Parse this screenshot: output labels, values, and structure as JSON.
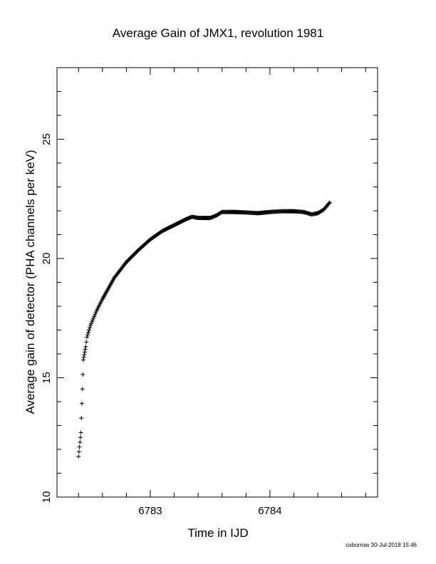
{
  "chart_data": {
    "type": "scatter",
    "title": "Average Gain of JMX1, revolution 1981",
    "xlabel": "Time in IJD",
    "ylabel": "Average gain of detector (PHA channels per keV)",
    "xlim": [
      6782.22,
      6784.9
    ],
    "ylim": [
      10,
      28
    ],
    "x_ticks": [
      6783,
      6784
    ],
    "y_ticks": [
      15,
      20,
      25
    ],
    "y_tick_labels_shown": [
      "10",
      "15",
      "20",
      "25"
    ],
    "grid": false,
    "marker": "plus",
    "series": [
      {
        "curve_points": [
          [
            6782.4,
            11.7
          ],
          [
            6782.42,
            12.7
          ],
          [
            6782.44,
            15.75
          ],
          [
            6782.46,
            16.3
          ],
          [
            6782.47,
            16.7
          ],
          [
            6782.5,
            17.2
          ],
          [
            6782.55,
            17.8
          ],
          [
            6782.6,
            18.3
          ],
          [
            6782.7,
            19.2
          ],
          [
            6782.8,
            19.85
          ],
          [
            6782.9,
            20.35
          ],
          [
            6783.0,
            20.8
          ],
          [
            6783.1,
            21.15
          ],
          [
            6783.2,
            21.4
          ],
          [
            6783.3,
            21.65
          ],
          [
            6783.35,
            21.75
          ],
          [
            6783.4,
            21.7
          ],
          [
            6783.5,
            21.7
          ],
          [
            6783.55,
            21.8
          ],
          [
            6783.6,
            21.95
          ],
          [
            6783.7,
            21.95
          ],
          [
            6783.8,
            21.93
          ],
          [
            6783.9,
            21.9
          ],
          [
            6784.0,
            21.95
          ],
          [
            6784.1,
            21.98
          ],
          [
            6784.2,
            21.98
          ],
          [
            6784.28,
            21.95
          ],
          [
            6784.35,
            21.85
          ],
          [
            6784.4,
            21.9
          ],
          [
            6784.45,
            22.05
          ],
          [
            6784.5,
            22.35
          ]
        ]
      }
    ]
  },
  "footer": "oxborrow 30-Jul-2018 15:46"
}
